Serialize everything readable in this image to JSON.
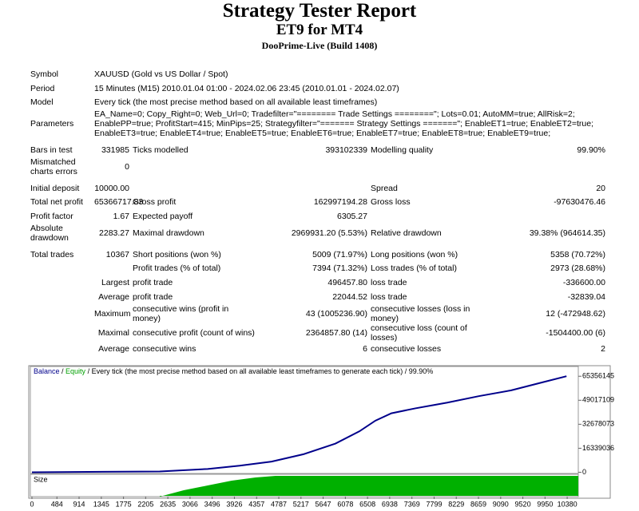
{
  "header": {
    "title": "Strategy Tester Report",
    "subtitle": "ET9 for MT4",
    "server": "DooPrime-Live (Build 1408)"
  },
  "sections": [
    [
      [
        "Symbol",
        "XAUUSD (Gold vs US Dollar / Spot)"
      ],
      [
        "Period",
        "15 Minutes (M15) 2010.01.04 01:00 - 2024.02.06 23:45 (2010.01.01 - 2024.02.07)"
      ],
      [
        "Model",
        "Every tick (the most precise method based on all available least timeframes)"
      ],
      [
        "Parameters",
        "EA_Name=0; Copy_Right=0; Web_Url=0; Tradefilter=\"======== Trade Settings ========\"; Lots=0.01; AutoMM=true; AllRisk=2; EnablePP=true; ProfitStart=415; MinPips=25; Strategyfilter=\"======= Strategy Settings =======\"; EnableET1=true; EnableET2=true; EnableET3=true; EnableET4=true; EnableET5=true; EnableET6=true; EnableET7=true; EnableET8=true; EnableET9=true;"
      ]
    ],
    [
      [
        "Bars in test",
        "331985",
        "Ticks modelled",
        "393102339",
        "Modelling quality",
        "99.90%"
      ],
      [
        "Mismatched charts errors",
        "0",
        null,
        null,
        null,
        null
      ]
    ],
    [
      [
        "Initial deposit",
        "10000.00",
        null,
        null,
        "Spread",
        "20"
      ],
      [
        "Total net profit",
        "65366717.83",
        "Gross profit",
        "162997194.28",
        "Gross loss",
        "-97630476.46"
      ],
      [
        "Profit factor",
        "1.67",
        "Expected payoff",
        "6305.27",
        null,
        null
      ],
      [
        "Absolute drawdown",
        "2283.27",
        "Maximal drawdown",
        "2969931.20 (5.53%)",
        "Relative drawdown",
        "39.38% (964614.35)"
      ]
    ],
    [
      [
        "Total trades",
        "10367",
        "Short positions (won %)",
        "5009 (71.97%)",
        "Long positions (won %)",
        "5358 (70.72%)"
      ],
      [
        null,
        null,
        "Profit trades (% of total)",
        "7394 (71.32%)",
        "Loss trades (% of total)",
        "2973 (28.68%)"
      ],
      [
        null,
        "Largest",
        "profit trade",
        "496457.80",
        "loss trade",
        "-336600.00"
      ],
      [
        null,
        "Average",
        "profit trade",
        "22044.52",
        "loss trade",
        "-32839.04"
      ],
      [
        null,
        "Maximum",
        "consecutive wins (profit in money)",
        "43 (1005236.90)",
        "consecutive losses (loss in money)",
        "12 (-472948.62)"
      ],
      [
        null,
        "Maximal",
        "consecutive profit (count of wins)",
        "2364857.80 (14)",
        "consecutive loss (count of losses)",
        "-1504400.00 (6)"
      ],
      [
        null,
        "Average",
        "consecutive wins",
        "6",
        "consecutive losses",
        "2"
      ]
    ]
  ],
  "chart_data": {
    "type": "line",
    "legend": {
      "balance": "Balance",
      "equity": "Equity",
      "model": "Every tick (the most precise method based on all available least timeframes to generate each tick)",
      "quality": "99.90%"
    },
    "equity_color": "#00a000",
    "size_label": "Size",
    "series": [
      {
        "name": "Balance",
        "color": "#00008b",
        "x": [
          0,
          2478,
          3408,
          4027,
          4647,
          5267,
          5886,
          6351,
          6661,
          6971,
          7435,
          8055,
          8674,
          9294,
          9913,
          10367
        ],
        "values": [
          0,
          560000,
          2230000,
          4460000,
          7250000,
          12270000,
          19520000,
          27880000,
          35130000,
          40150000,
          43500000,
          47400000,
          51860000,
          55770000,
          61340000,
          65366718
        ]
      }
    ],
    "xlim": [
      0,
      10580
    ],
    "ylim": [
      -3000000,
      72000000
    ],
    "xticks": [
      0,
      484,
      914,
      1345,
      1775,
      2205,
      2635,
      3066,
      3496,
      3926,
      4357,
      4787,
      5217,
      5647,
      6078,
      6508,
      6938,
      7369,
      7799,
      8229,
      8659,
      9090,
      9520,
      9950,
      10380
    ],
    "yticks": [
      0,
      16339036,
      32678073,
      49017109,
      65356145
    ]
  }
}
